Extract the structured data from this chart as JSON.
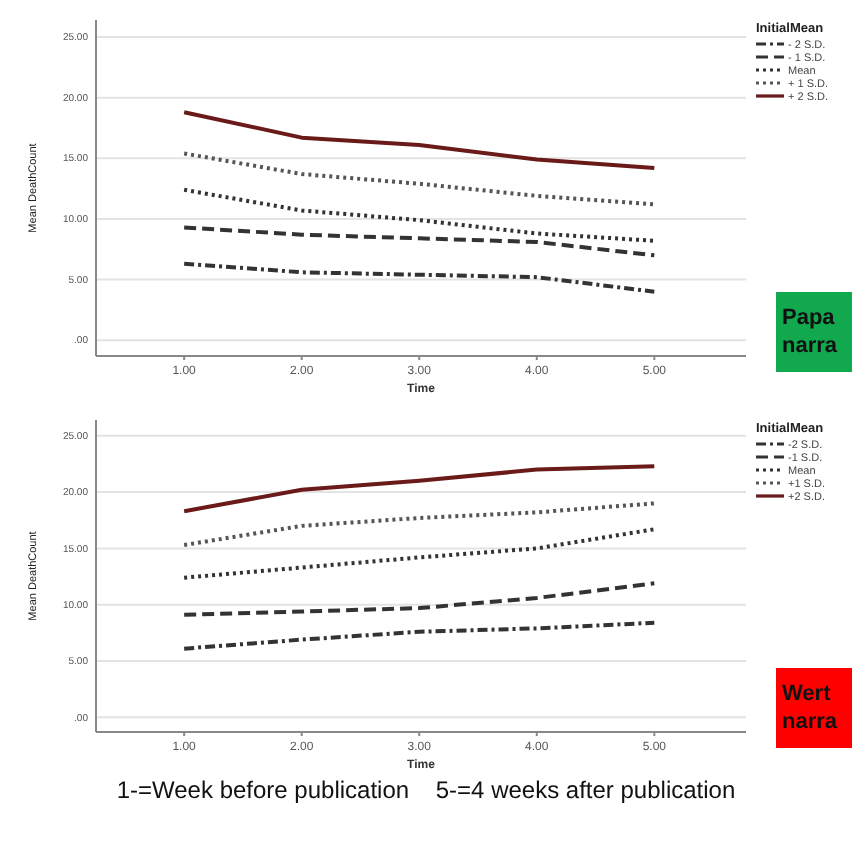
{
  "chart_data": [
    {
      "type": "line",
      "xlabel": "Time",
      "ylabel": "Mean DeathCount",
      "legend_title": "InitialMean",
      "legend": "top right",
      "grid": "y",
      "marker": "none",
      "x": [
        1,
        2,
        3,
        4,
        5
      ],
      "xlim": [
        0.25,
        5.78
      ],
      "xticks": [
        {
          "value": 1,
          "label": "1.00"
        },
        {
          "value": 2,
          "label": "2.00"
        },
        {
          "value": 3,
          "label": "3.00"
        },
        {
          "value": 4,
          "label": "4.00"
        },
        {
          "value": 5,
          "label": "5.00"
        }
      ],
      "ylim": [
        -1.3,
        26.4
      ],
      "yticks": [
        {
          "value": 0,
          "label": ".00"
        },
        {
          "value": 5,
          "label": "5.00"
        },
        {
          "value": 10,
          "label": "10.00"
        },
        {
          "value": 15,
          "label": "15.00"
        },
        {
          "value": 20,
          "label": "20.00"
        },
        {
          "value": 25,
          "label": "25.00"
        }
      ],
      "annotations": [
        "Papa narra"
      ],
      "series": [
        {
          "name": "- 2 S.D.",
          "color": "#333333",
          "line_style": "dashdot",
          "values": [
            6.3,
            5.6,
            5.4,
            5.2,
            4.0
          ]
        },
        {
          "name": "- 1 S.D.",
          "color": "#333333",
          "line_style": "dashed",
          "values": [
            9.3,
            8.7,
            8.4,
            8.1,
            7.0
          ]
        },
        {
          "name": "Mean",
          "color": "#333333",
          "line_style": "dotted",
          "values": [
            12.4,
            10.7,
            9.9,
            8.8,
            8.2
          ]
        },
        {
          "name": "+ 1 S.D.",
          "color": "#555555",
          "line_style": "dotted",
          "values": [
            15.4,
            13.7,
            12.9,
            11.9,
            11.2
          ]
        },
        {
          "name": "+ 2 S.D.",
          "color": "#6b1a1a",
          "line_style": "solid",
          "values": [
            18.8,
            16.7,
            16.1,
            14.9,
            14.2
          ]
        }
      ]
    },
    {
      "type": "line",
      "xlabel": "Time",
      "ylabel": "Mean DeathCount",
      "legend_title": "InitialMean",
      "legend": "top right",
      "grid": "y",
      "marker": "none",
      "x": [
        1,
        2,
        3,
        4,
        5
      ],
      "xlim": [
        0.25,
        5.78
      ],
      "xticks": [
        {
          "value": 1,
          "label": "1.00"
        },
        {
          "value": 2,
          "label": "2.00"
        },
        {
          "value": 3,
          "label": "3.00"
        },
        {
          "value": 4,
          "label": "4.00"
        },
        {
          "value": 5,
          "label": "5.00"
        }
      ],
      "ylim": [
        -1.3,
        26.4
      ],
      "yticks": [
        {
          "value": 0,
          "label": ".00"
        },
        {
          "value": 5,
          "label": "5.00"
        },
        {
          "value": 10,
          "label": "10.00"
        },
        {
          "value": 15,
          "label": "15.00"
        },
        {
          "value": 20,
          "label": "20.00"
        },
        {
          "value": 25,
          "label": "25.00"
        }
      ],
      "annotations": [
        "Wert narra",
        "1-=Week before publication    5-=4 weeks after publication"
      ],
      "series": [
        {
          "name": "-2 S.D.",
          "color": "#333333",
          "line_style": "dashdot",
          "values": [
            6.1,
            6.9,
            7.6,
            7.9,
            8.4
          ]
        },
        {
          "name": "-1 S.D.",
          "color": "#333333",
          "line_style": "dashed",
          "values": [
            9.1,
            9.4,
            9.7,
            10.6,
            11.9
          ]
        },
        {
          "name": "Mean",
          "color": "#333333",
          "line_style": "dotted",
          "values": [
            12.4,
            13.3,
            14.2,
            15.0,
            16.7
          ]
        },
        {
          "name": "+1 S.D.",
          "color": "#555555",
          "line_style": "dotted",
          "values": [
            15.3,
            17.0,
            17.7,
            18.2,
            19.0
          ]
        },
        {
          "name": "+2 S.D.",
          "color": "#6b1a1a",
          "line_style": "solid",
          "values": [
            18.3,
            20.2,
            21.0,
            22.0,
            22.3
          ]
        }
      ]
    }
  ]
}
